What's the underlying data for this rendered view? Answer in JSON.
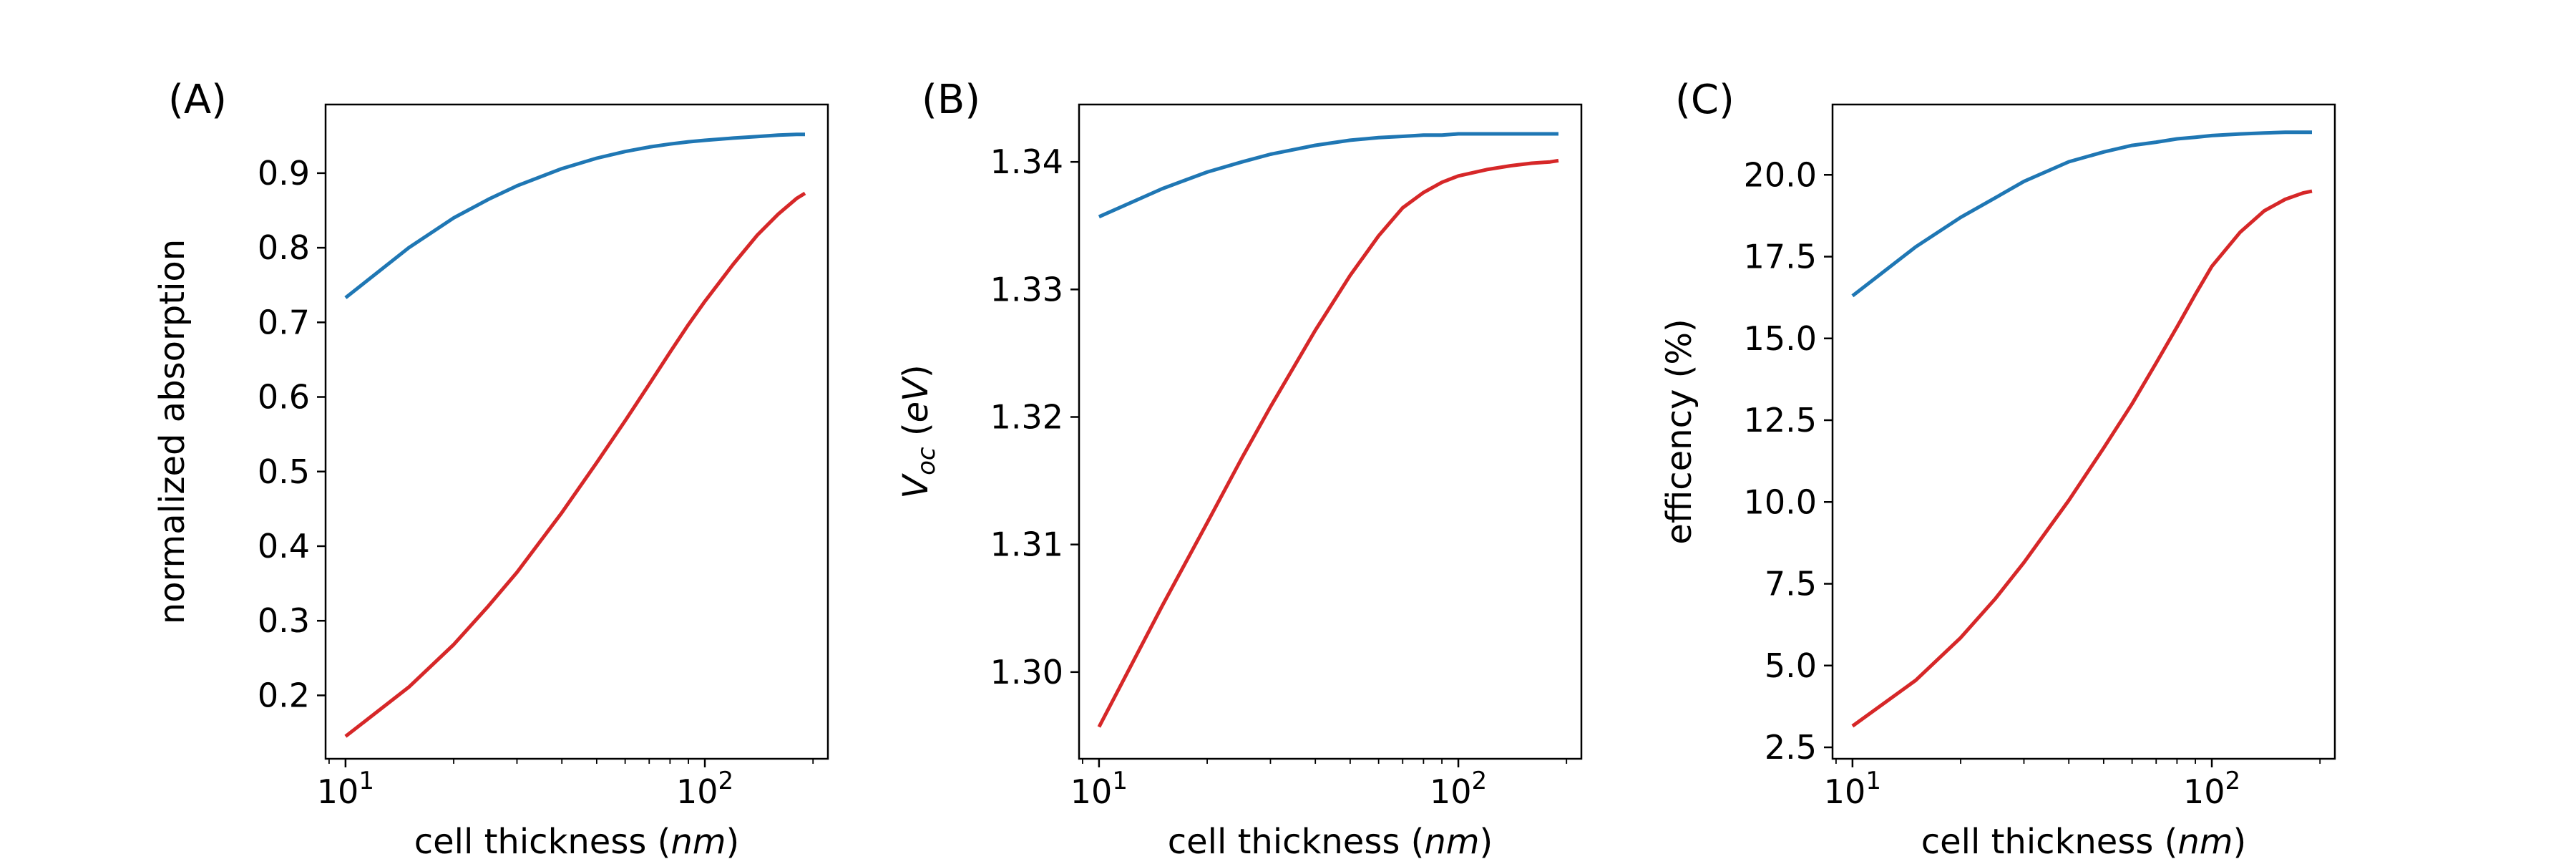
{
  "colors": {
    "blue": "#1f77b4",
    "red": "#d62728",
    "axis": "#000000",
    "background": "#ffffff"
  },
  "chart_data": [
    {
      "type": "line",
      "panel_label": "(A)",
      "xscale": "log",
      "xlim": [
        8.8,
        220
      ],
      "ylim": [
        0.115,
        0.992
      ],
      "xlabel": {
        "main": "cell thickness (",
        "unit": "nm",
        "close": ")"
      },
      "ylabel": {
        "main": "normalized absorption"
      },
      "xticks": [
        {
          "value": 10,
          "base": "10",
          "exp": "1"
        },
        {
          "value": 100,
          "base": "10",
          "exp": "2"
        }
      ],
      "yticks": [
        {
          "value": 0.2,
          "label": "0.2"
        },
        {
          "value": 0.3,
          "label": "0.3"
        },
        {
          "value": 0.4,
          "label": "0.4"
        },
        {
          "value": 0.5,
          "label": "0.5"
        },
        {
          "value": 0.6,
          "label": "0.6"
        },
        {
          "value": 0.7,
          "label": "0.7"
        },
        {
          "value": 0.8,
          "label": "0.8"
        },
        {
          "value": 0.9,
          "label": "0.9"
        }
      ],
      "x": [
        10,
        15,
        20,
        25,
        30,
        40,
        50,
        60,
        70,
        80,
        90,
        100,
        120,
        140,
        160,
        180,
        190
      ],
      "series": [
        {
          "name": "blue",
          "color": "#1f77b4",
          "values": [
            0.733,
            0.8,
            0.84,
            0.865,
            0.883,
            0.906,
            0.92,
            0.929,
            0.935,
            0.939,
            0.942,
            0.944,
            0.947,
            0.949,
            0.951,
            0.952,
            0.952
          ]
        },
        {
          "name": "red",
          "color": "#d62728",
          "values": [
            0.145,
            0.211,
            0.268,
            0.32,
            0.365,
            0.445,
            0.512,
            0.568,
            0.617,
            0.66,
            0.697,
            0.728,
            0.778,
            0.817,
            0.845,
            0.866,
            0.873
          ]
        }
      ]
    },
    {
      "type": "line",
      "panel_label": "(B)",
      "xscale": "log",
      "xlim": [
        8.8,
        220
      ],
      "ylim": [
        1.2932,
        1.3445
      ],
      "xlabel": {
        "main": "cell thickness (",
        "unit": "nm",
        "close": ")"
      },
      "ylabel": {
        "var": "V",
        "sub": "oc",
        "unit_open": " (",
        "unit": "eV",
        "unit_close": ")"
      },
      "xticks": [
        {
          "value": 10,
          "base": "10",
          "exp": "1"
        },
        {
          "value": 100,
          "base": "10",
          "exp": "2"
        }
      ],
      "yticks": [
        {
          "value": 1.3,
          "label": "1.30"
        },
        {
          "value": 1.31,
          "label": "1.31"
        },
        {
          "value": 1.32,
          "label": "1.32"
        },
        {
          "value": 1.33,
          "label": "1.33"
        },
        {
          "value": 1.34,
          "label": "1.34"
        }
      ],
      "x": [
        10,
        15,
        20,
        25,
        30,
        40,
        50,
        60,
        70,
        80,
        90,
        100,
        120,
        140,
        160,
        180,
        190
      ],
      "series": [
        {
          "name": "blue",
          "color": "#1f77b4",
          "values": [
            1.3357,
            1.3379,
            1.3392,
            1.34,
            1.3406,
            1.3413,
            1.3417,
            1.3419,
            1.342,
            1.3421,
            1.3421,
            1.3422,
            1.3422,
            1.3422,
            1.3422,
            1.3422,
            1.3422
          ]
        },
        {
          "name": "red",
          "color": "#d62728",
          "values": [
            1.2957,
            1.3052,
            1.3117,
            1.3168,
            1.3208,
            1.3268,
            1.3311,
            1.3342,
            1.3364,
            1.3376,
            1.3384,
            1.3389,
            1.3394,
            1.3397,
            1.3399,
            1.34,
            1.3401
          ]
        }
      ]
    },
    {
      "type": "line",
      "panel_label": "(C)",
      "xscale": "log",
      "xlim": [
        8.8,
        220
      ],
      "ylim": [
        2.15,
        22.15
      ],
      "xlabel": {
        "main": "cell thickness (",
        "unit": "nm",
        "close": ")"
      },
      "ylabel": {
        "main": "efficency (%)"
      },
      "xticks": [
        {
          "value": 10,
          "base": "10",
          "exp": "1"
        },
        {
          "value": 100,
          "base": "10",
          "exp": "2"
        }
      ],
      "yticks": [
        {
          "value": 2.5,
          "label": "2.5"
        },
        {
          "value": 5.0,
          "label": "5.0"
        },
        {
          "value": 7.5,
          "label": "7.5"
        },
        {
          "value": 10.0,
          "label": "10.0"
        },
        {
          "value": 12.5,
          "label": "12.5"
        },
        {
          "value": 15.0,
          "label": "15.0"
        },
        {
          "value": 17.5,
          "label": "17.5"
        },
        {
          "value": 20.0,
          "label": "20.0"
        }
      ],
      "x": [
        10,
        15,
        20,
        25,
        30,
        40,
        50,
        60,
        70,
        80,
        90,
        100,
        120,
        140,
        160,
        180,
        190
      ],
      "series": [
        {
          "name": "blue",
          "color": "#1f77b4",
          "values": [
            16.3,
            17.8,
            18.7,
            19.3,
            19.8,
            20.4,
            20.7,
            20.9,
            21.0,
            21.1,
            21.15,
            21.2,
            21.25,
            21.28,
            21.3,
            21.3,
            21.3
          ]
        },
        {
          "name": "red",
          "color": "#d62728",
          "values": [
            3.15,
            4.55,
            5.85,
            7.05,
            8.15,
            10.05,
            11.65,
            13.0,
            14.25,
            15.35,
            16.35,
            17.2,
            18.25,
            18.9,
            19.25,
            19.45,
            19.5
          ]
        }
      ]
    }
  ]
}
